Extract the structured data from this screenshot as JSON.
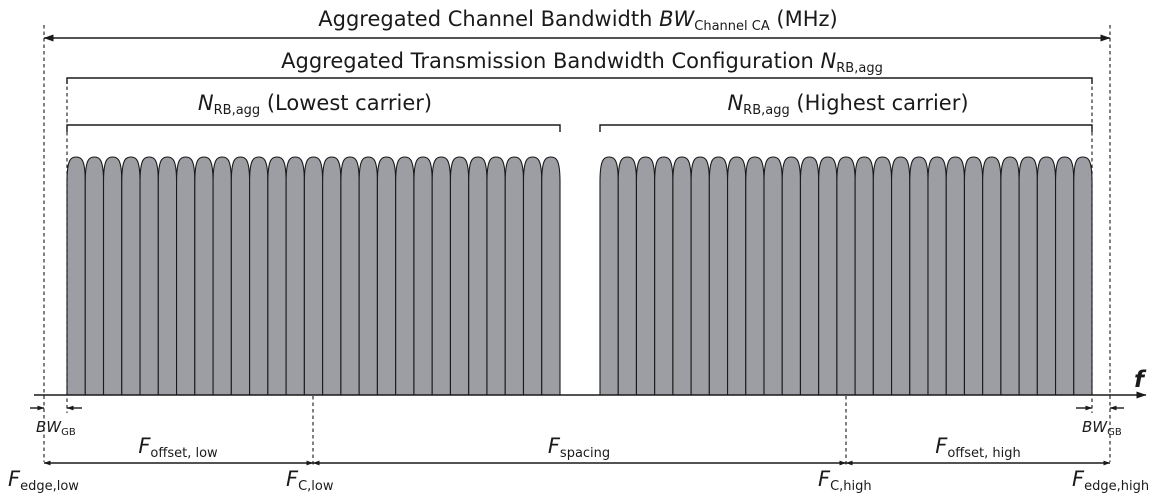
{
  "labels": {
    "channel_bw_prefix": "Aggregated Channel Bandwidth ",
    "channel_bw_symbol": "BW",
    "channel_bw_sub": "Channel CA",
    "channel_bw_unit": " (MHz)",
    "tx_bw_prefix": "Aggregated Transmission Bandwidth Configuration ",
    "tx_bw_symbol": "N",
    "tx_bw_sub": "RB,agg",
    "low_symbol": "N",
    "low_sub": "RB,agg",
    "low_text": " (Lowest carrier)",
    "high_symbol": "N",
    "high_sub": "RB,agg",
    "high_text": " (Highest carrier)",
    "freq_axis": "f",
    "bwgb_symbol": "BW",
    "bwgb_sub": "GB",
    "f_offset_low_symbol": "F",
    "f_offset_low_sub": "offset, low",
    "f_spacing_symbol": "F",
    "f_spacing_sub": "spacing",
    "f_offset_high_symbol": "F",
    "f_offset_high_sub": "offset, high",
    "f_edge_low_symbol": "F",
    "f_edge_low_sub": "edge,low",
    "f_c_low_symbol": "F",
    "f_c_low_sub": "C,low",
    "f_c_high_symbol": "F",
    "f_c_high_sub": "C,high",
    "f_edge_high_symbol": "F",
    "f_edge_high_sub": "edge,high"
  },
  "resource_blocks": {
    "lowest_carrier_count": 27,
    "highest_carrier_count": 27
  },
  "colors": {
    "rb_fill": "#9c9ea3",
    "line": "#1a1a1a"
  }
}
